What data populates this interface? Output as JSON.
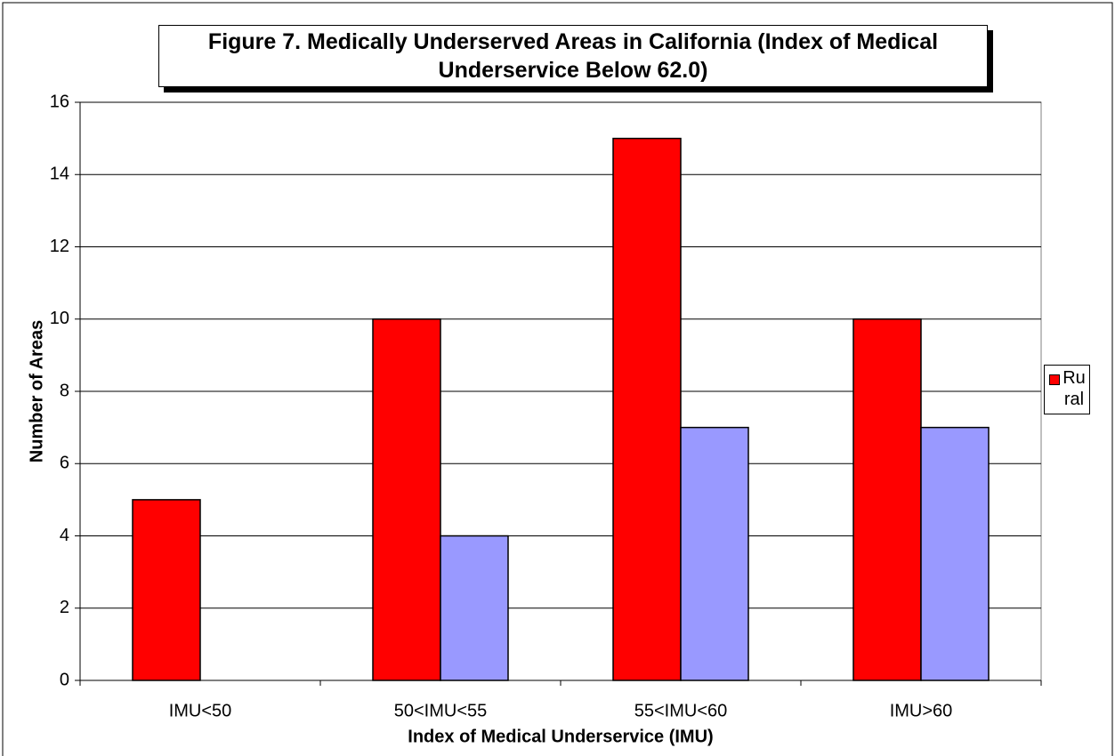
{
  "chart_data": {
    "type": "bar",
    "title": "Figure 7. Medically Underserved Areas in California (Index of Medical Underservice Below 62.0)",
    "x_label": "Index of Medical Underservice (IMU)",
    "y_label": "Number of Areas",
    "categories": [
      "IMU<50",
      "50<IMU<55",
      "55<IMU<60",
      "IMU>60"
    ],
    "series": [
      {
        "name": "Rural",
        "color": "#ff0000",
        "values": [
          5,
          10,
          15,
          10
        ]
      },
      {
        "color": "#9999ff",
        "values": [
          0,
          4,
          7,
          7
        ]
      }
    ],
    "ylim": [
      0,
      16
    ],
    "yticks": [
      0,
      2,
      4,
      6,
      8,
      10,
      12,
      14,
      16
    ],
    "grid": true,
    "legend": "right"
  }
}
